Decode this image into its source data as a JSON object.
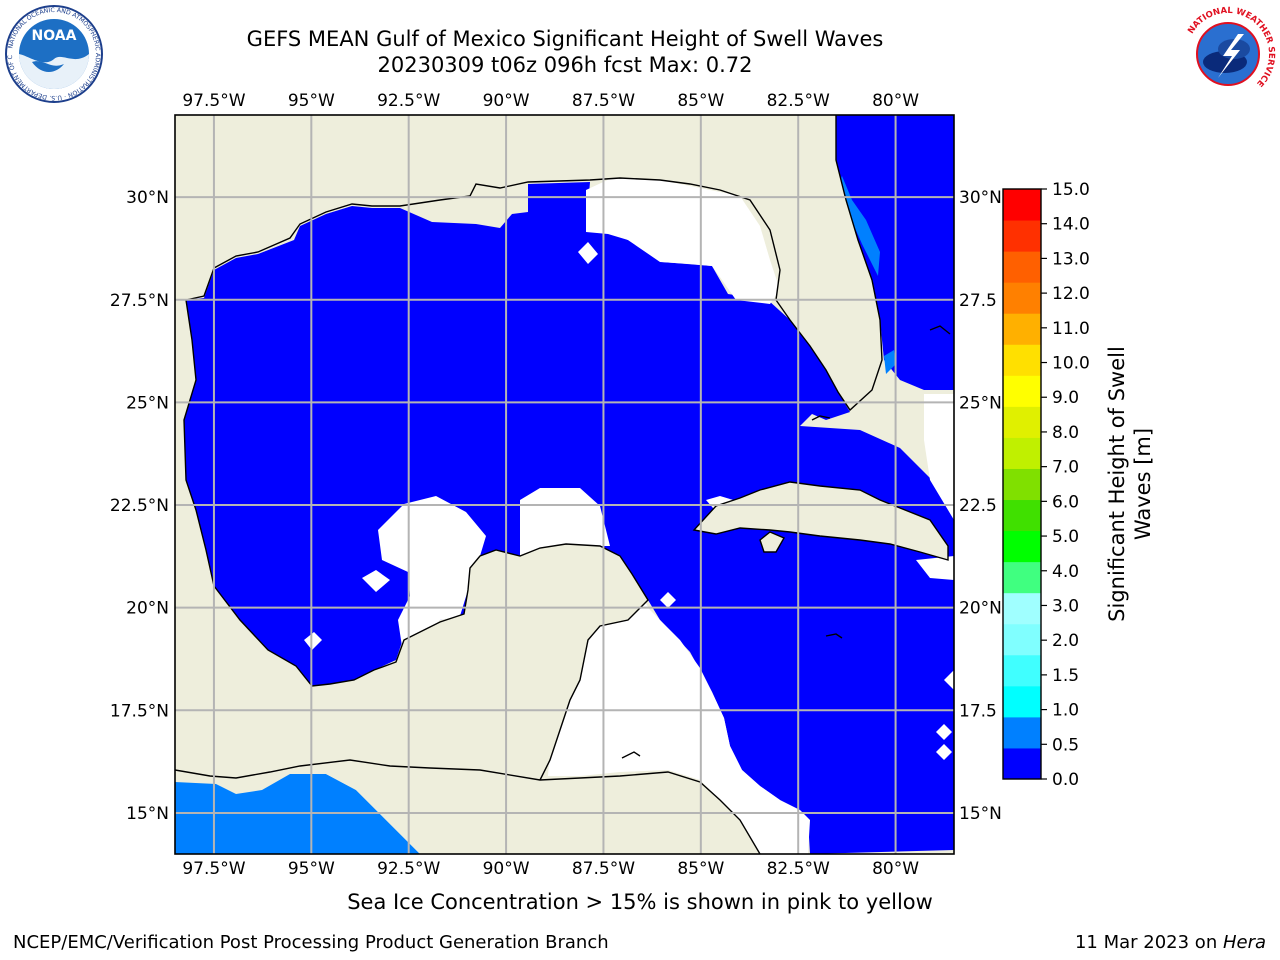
{
  "header": {
    "title_line1": "GEFS MEAN Gulf of Mexico Significant Height of Swell Waves",
    "title_line2": "20230309 t06z 096h fcst   Max: 0.72"
  },
  "logos": {
    "left": "NOAA",
    "left_ring_text": "NATIONAL OCEANIC AND ATMOSPHERIC ADMINISTRATION · U.S. DEPARTMENT OF COMMERCE",
    "right_ring_text": "NATIONAL WEATHER SERVICE"
  },
  "map": {
    "lon_range": [
      -98.5,
      -78.5
    ],
    "lat_range": [
      14.0,
      32.0
    ],
    "lon_ticks": [
      "97.5°W",
      "95°W",
      "92.5°W",
      "90°W",
      "87.5°W",
      "85°W",
      "82.5°W",
      "80°W"
    ],
    "lat_ticks": [
      "30°N",
      "27.5°N",
      "25°N",
      "22.5°N",
      "20°N",
      "17.5°N",
      "15°N"
    ],
    "lat_ticks_right": [
      "30°N",
      "27.5",
      "25°N",
      "22.5",
      "20°N",
      "17.5",
      "15°N"
    ],
    "colors": {
      "land": "#eeeedc",
      "water_low": "#0000ff",
      "water_mid": "#0080ff",
      "nodata": "#ffffff",
      "grid": "#b4b4b4"
    }
  },
  "colorbar": {
    "label": "Significant Height of Swell Waves [m]",
    "label_line1": "Significant Height of Swell",
    "label_line2": "Waves [m]",
    "ticks": [
      "15.0",
      "14.0",
      "13.0",
      "12.0",
      "11.0",
      "10.0",
      "9.0",
      "8.0",
      "7.0",
      "6.0",
      "5.0",
      "4.0",
      "3.0",
      "2.0",
      "1.5",
      "1.0",
      "0.5",
      "0.0"
    ],
    "colors": [
      "#0000ff",
      "#0080ff",
      "#00ffff",
      "#40ffff",
      "#80ffff",
      "#a0ffff",
      "#40ff80",
      "#00ff00",
      "#40e000",
      "#80e000",
      "#c0f000",
      "#e0f000",
      "#ffff00",
      "#ffe000",
      "#ffb000",
      "#ff8000",
      "#ff6000",
      "#ff3000",
      "#ff0000"
    ]
  },
  "footer": {
    "note": "Sea Ice Concentration > 15% is shown in pink to yellow",
    "credit_left": "NCEP/EMC/Verification Post Processing Product Generation Branch",
    "date": "11 Mar 2023 on ",
    "host": "Hera"
  }
}
